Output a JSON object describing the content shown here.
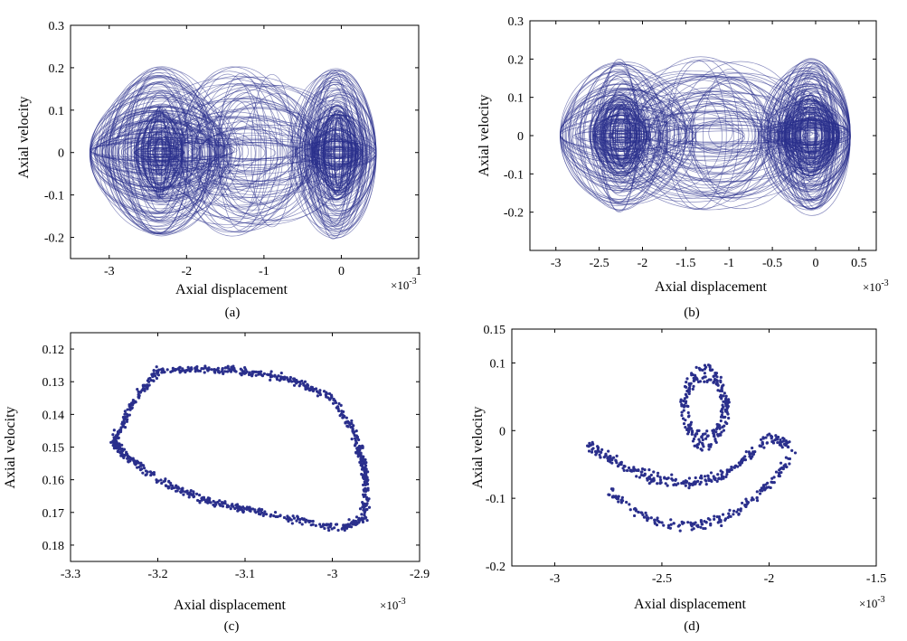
{
  "chart_data": [
    {
      "id": "a",
      "type": "line",
      "caption": "(a)",
      "xlabel": "Axial displacement",
      "ylabel": "Axial velocity",
      "x_multiplier": "×10-3",
      "x_multiplier_base": "×10",
      "x_multiplier_exp": "-3",
      "xlim": [
        -3.5,
        1
      ],
      "ylim": [
        -0.25,
        0.3
      ],
      "xticks": [
        "-3",
        "-2",
        "-1",
        "0",
        "1"
      ],
      "yticks": [
        "0.3",
        "0.2",
        "0.1",
        "0",
        "-0.1",
        "-0.2"
      ],
      "xtick_values": [
        -3,
        -2,
        -1,
        0,
        1
      ],
      "ytick_values": [
        0.3,
        0.2,
        0.1,
        0,
        -0.1,
        -0.2
      ],
      "color": "#2a2f8c",
      "style": "dense chaotic phase trajectory",
      "attractor_centers": [
        [
          -2.35,
          0
        ],
        [
          -0.05,
          0
        ]
      ],
      "x_extent": [
        -3.25,
        0.45
      ],
      "y_extent": [
        -0.22,
        0.2
      ]
    },
    {
      "id": "b",
      "type": "line",
      "caption": "(b)",
      "xlabel": "Axial displacement",
      "ylabel": "Axial velocity",
      "x_multiplier": "×10-3",
      "x_multiplier_base": "×10",
      "x_multiplier_exp": "-3",
      "xlim": [
        -3.3,
        0.7
      ],
      "ylim": [
        -0.3,
        0.3
      ],
      "xticks": [
        "-3",
        "-2.5",
        "-2",
        "-1.5",
        "-1",
        "-0.5",
        "0",
        "0.5"
      ],
      "yticks": [
        "0.3",
        "0.2",
        "0.1",
        "0",
        "-0.1",
        "-0.2"
      ],
      "xtick_values": [
        -3,
        -2.5,
        -2,
        -1.5,
        -1,
        -0.5,
        0,
        0.5
      ],
      "ytick_values": [
        0.3,
        0.2,
        0.1,
        0,
        -0.1,
        -0.2
      ],
      "color": "#2a2f8c",
      "style": "dense chaotic phase trajectory",
      "attractor_centers": [
        [
          -2.25,
          0
        ],
        [
          -0.05,
          0
        ]
      ],
      "x_extent": [
        -2.95,
        0.4
      ],
      "y_extent": [
        -0.22,
        0.2
      ]
    },
    {
      "id": "c",
      "type": "scatter",
      "caption": "(c)",
      "xlabel": "Axial displacement",
      "ylabel": "Axial velocity",
      "x_multiplier": "×10-3",
      "x_multiplier_base": "×10",
      "x_multiplier_exp": "-3",
      "xlim": [
        -3.3,
        -2.9
      ],
      "ylim": [
        0.185,
        0.115
      ],
      "xticks": [
        "-3.3",
        "-3.2",
        "-3.1",
        "-3",
        "-2.9"
      ],
      "yticks": [
        "0.12",
        "0.13",
        "0.14",
        "0.15",
        "0.16",
        "0.17",
        "0.18"
      ],
      "xtick_values": [
        -3.3,
        -3.2,
        -3.1,
        -3,
        -2.9
      ],
      "ytick_values": [
        0.12,
        0.13,
        0.14,
        0.15,
        0.16,
        0.17,
        0.18
      ],
      "color": "#2a2f8c",
      "ring_outline": [
        [
          -3.25,
          0.148
        ],
        [
          -3.225,
          0.135
        ],
        [
          -3.2,
          0.127
        ],
        [
          -3.15,
          0.126
        ],
        [
          -3.1,
          0.127
        ],
        [
          -3.05,
          0.129
        ],
        [
          -3.0,
          0.135
        ],
        [
          -2.975,
          0.145
        ],
        [
          -2.965,
          0.155
        ],
        [
          -2.96,
          0.163
        ],
        [
          -2.965,
          0.172
        ],
        [
          -2.99,
          0.175
        ],
        [
          -3.05,
          0.172
        ],
        [
          -3.1,
          0.169
        ],
        [
          -3.15,
          0.166
        ],
        [
          -3.2,
          0.16
        ],
        [
          -3.24,
          0.152
        ]
      ],
      "point_count": 900
    },
    {
      "id": "d",
      "type": "scatter",
      "caption": "(d)",
      "xlabel": "Axial displacement",
      "ylabel": "Axial velocity",
      "x_multiplier": "×10-3",
      "x_multiplier_base": "×10",
      "x_multiplier_exp": "-3",
      "xlim": [
        -3.2,
        -1.5
      ],
      "ylim": [
        -0.2,
        0.15
      ],
      "xticks": [
        "-3",
        "-2.5",
        "-2",
        "-1.5"
      ],
      "yticks": [
        "0.15",
        "0.1",
        "0",
        "-0.1",
        "-0.2"
      ],
      "xtick_values": [
        -3,
        -2.5,
        -2,
        -1.5
      ],
      "ytick_values": [
        0.15,
        0.1,
        0,
        -0.1,
        -0.2
      ],
      "color": "#2a2f8c",
      "lobe_center": [
        -2.3,
        0.035
      ],
      "lobe_radius": [
        0.1,
        0.05
      ],
      "lower_band": [
        [
          -2.85,
          -0.02
        ],
        [
          -2.7,
          -0.05
        ],
        [
          -2.55,
          -0.07
        ],
        [
          -2.4,
          -0.08
        ],
        [
          -2.25,
          -0.07
        ],
        [
          -2.1,
          -0.04
        ],
        [
          -2.0,
          -0.01
        ],
        [
          -1.9,
          -0.02
        ]
      ],
      "outer_arc": [
        [
          -2.75,
          -0.09
        ],
        [
          -2.6,
          -0.125
        ],
        [
          -2.45,
          -0.14
        ],
        [
          -2.3,
          -0.14
        ],
        [
          -2.15,
          -0.12
        ],
        [
          -2.0,
          -0.08
        ],
        [
          -1.88,
          -0.03
        ]
      ],
      "point_count": 700
    }
  ]
}
